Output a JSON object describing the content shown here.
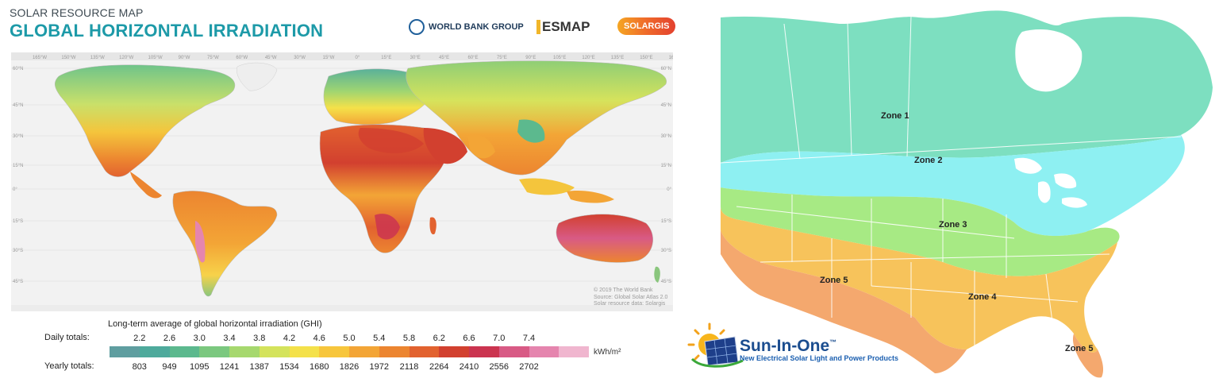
{
  "left_panel": {
    "subtitle": "SOLAR RESOURCE MAP",
    "title": "GLOBAL HORIZONTAL IRRADIATION",
    "logos": {
      "world_bank": "WORLD BANK GROUP",
      "esmap": "ESMAP",
      "solargis": "SOLARGIS"
    },
    "credits": [
      "© 2019 The World Bank",
      "Source: Global Solar Atlas 2.0",
      "Solar resource data: Solargis"
    ],
    "legend": {
      "title": "Long-term average of global horizontal irradiation (GHI)",
      "daily_label": "Daily totals:",
      "yearly_label": "Yearly totals:",
      "unit": "kWh/m²",
      "daily": [
        "2.2",
        "2.6",
        "3.0",
        "3.4",
        "3.8",
        "4.2",
        "4.6",
        "5.0",
        "5.4",
        "5.8",
        "6.2",
        "6.6",
        "7.0",
        "7.4"
      ],
      "yearly": [
        "803",
        "949",
        "1095",
        "1241",
        "1387",
        "1534",
        "1680",
        "1826",
        "1972",
        "2118",
        "2264",
        "2410",
        "2556",
        "2702"
      ],
      "colors": [
        "#5f9ea0",
        "#4eaa9c",
        "#5cb98e",
        "#7bc87f",
        "#a6d86e",
        "#d4e35c",
        "#f4e14a",
        "#f7c63c",
        "#f3a536",
        "#ec8530",
        "#e2622f",
        "#d2402f",
        "#cb3450",
        "#d85a85",
        "#e585ae",
        "#f0b6cf"
      ]
    },
    "map_labels": {
      "longitudes": [
        "165°W",
        "150°W",
        "135°W",
        "120°W",
        "105°W",
        "90°W",
        "75°W",
        "60°W",
        "45°W",
        "30°W",
        "15°W",
        "0°",
        "15°E",
        "30°E",
        "45°E",
        "60°E",
        "75°E",
        "90°E",
        "105°E",
        "120°E",
        "135°E",
        "150°E",
        "165°E"
      ],
      "latitudes_left": [
        "60°N",
        "45°N",
        "30°N",
        "15°N",
        "0°",
        "15°S",
        "30°S",
        "45°S"
      ],
      "latitudes_right": [
        "60°N",
        "45°N",
        "30°N",
        "15°N",
        "0°",
        "15°S",
        "30°S",
        "45°S"
      ]
    }
  },
  "right_panel": {
    "zones": [
      {
        "id": "zone1",
        "label": "Zone 1",
        "color": "#7ddfc0"
      },
      {
        "id": "zone2",
        "label": "Zone 2",
        "color": "#8ef0f2"
      },
      {
        "id": "zone3",
        "label": "Zone 3",
        "color": "#a7ea84"
      },
      {
        "id": "zone4",
        "label": "Zone 4",
        "color": "#f7c35b"
      },
      {
        "id": "zone5",
        "label": "Zone 5",
        "color": "#f4a86e"
      }
    ],
    "zone5_florida_label": "Zone 5",
    "brand": {
      "name": "Sun-In-One",
      "tm": "™",
      "tagline": "New Electrical Solar Light and Power Products"
    }
  }
}
